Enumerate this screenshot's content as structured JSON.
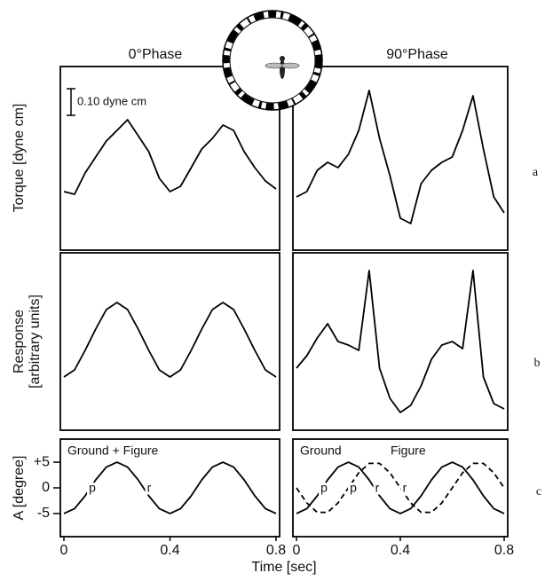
{
  "chart_data": [
    {
      "type": "line",
      "title": "0°Phase",
      "ylabel": "Torque [dyne cm]",
      "scale_bar": {
        "value": 0.1,
        "label": "0.10 dyne cm"
      },
      "x": [
        0,
        0.04,
        0.08,
        0.12,
        0.16,
        0.2,
        0.24,
        0.28,
        0.32,
        0.36,
        0.4,
        0.44,
        0.48,
        0.52,
        0.56,
        0.6,
        0.64,
        0.68,
        0.72,
        0.76,
        0.8
      ],
      "xlim": [
        0,
        0.8
      ],
      "ylim": [
        0,
        0.69
      ],
      "series": [
        {
          "color": "#000000",
          "values": [
            0.22,
            0.21,
            0.29,
            0.35,
            0.41,
            0.45,
            0.49,
            0.43,
            0.37,
            0.27,
            0.22,
            0.24,
            0.31,
            0.38,
            0.42,
            0.47,
            0.45,
            0.37,
            0.31,
            0.26,
            0.23
          ]
        }
      ]
    },
    {
      "type": "line",
      "title": "90°Phase",
      "row_label": "a",
      "x": [
        0,
        0.04,
        0.08,
        0.12,
        0.16,
        0.2,
        0.24,
        0.28,
        0.32,
        0.36,
        0.4,
        0.44,
        0.48,
        0.52,
        0.56,
        0.6,
        0.64,
        0.68,
        0.72,
        0.76,
        0.8
      ],
      "xlim": [
        0,
        0.8
      ],
      "ylim": [
        0,
        0.69
      ],
      "series": [
        {
          "color": "#000000",
          "values": [
            0.2,
            0.22,
            0.3,
            0.33,
            0.31,
            0.36,
            0.45,
            0.6,
            0.42,
            0.28,
            0.12,
            0.1,
            0.25,
            0.3,
            0.33,
            0.35,
            0.45,
            0.58,
            0.38,
            0.2,
            0.14
          ]
        }
      ]
    },
    {
      "type": "line",
      "ylabel": [
        "Response",
        "[arbitrary units]"
      ],
      "x": [
        0,
        0.04,
        0.08,
        0.12,
        0.16,
        0.2,
        0.24,
        0.28,
        0.32,
        0.36,
        0.4,
        0.44,
        0.48,
        0.52,
        0.56,
        0.6,
        0.64,
        0.68,
        0.72,
        0.76,
        0.8
      ],
      "xlim": [
        0,
        0.8
      ],
      "ylim": [
        0,
        1
      ],
      "series": [
        {
          "color": "#000000",
          "values": [
            0.3,
            0.34,
            0.45,
            0.57,
            0.68,
            0.72,
            0.68,
            0.57,
            0.45,
            0.34,
            0.3,
            0.34,
            0.45,
            0.57,
            0.68,
            0.72,
            0.68,
            0.57,
            0.45,
            0.34,
            0.3
          ]
        }
      ]
    },
    {
      "type": "line",
      "row_label": "b",
      "x": [
        0,
        0.04,
        0.08,
        0.12,
        0.16,
        0.2,
        0.24,
        0.28,
        0.32,
        0.36,
        0.4,
        0.44,
        0.48,
        0.52,
        0.56,
        0.6,
        0.64,
        0.68,
        0.72,
        0.76,
        0.8
      ],
      "xlim": [
        0,
        0.8
      ],
      "ylim": [
        0,
        1
      ],
      "series": [
        {
          "color": "#000000",
          "values": [
            0.35,
            0.42,
            0.52,
            0.6,
            0.5,
            0.48,
            0.45,
            0.9,
            0.35,
            0.18,
            0.1,
            0.14,
            0.25,
            0.4,
            0.48,
            0.5,
            0.46,
            0.9,
            0.3,
            0.15,
            0.12
          ]
        }
      ]
    },
    {
      "type": "line",
      "ylabel": "A [degree]",
      "xlabel": "Time [sec]",
      "annotations": [
        "p",
        "r"
      ],
      "x": [
        0,
        0.04,
        0.08,
        0.12,
        0.16,
        0.2,
        0.24,
        0.28,
        0.32,
        0.36,
        0.4,
        0.44,
        0.48,
        0.52,
        0.56,
        0.6,
        0.64,
        0.68,
        0.72,
        0.76,
        0.8
      ],
      "xlim": [
        0,
        0.8
      ],
      "ylim": [
        -9.5,
        9.5
      ],
      "yticks": [
        {
          "value": 5,
          "label": "+5"
        },
        0,
        -5
      ],
      "xticks": [
        0,
        0.4,
        0.8
      ],
      "series": [
        {
          "name": "Ground + Figure",
          "color": "#000000",
          "values": [
            -5,
            -4.05,
            -1.55,
            1.55,
            4.05,
            5,
            4.05,
            1.55,
            -1.55,
            -4.05,
            -5,
            -4.05,
            -1.55,
            1.55,
            4.05,
            5,
            4.05,
            1.55,
            -1.55,
            -4.05,
            -5
          ]
        }
      ]
    },
    {
      "type": "line",
      "row_label": "c",
      "annotations": [
        "p",
        "p",
        "r",
        "r"
      ],
      "x": [
        0,
        0.04,
        0.08,
        0.12,
        0.16,
        0.2,
        0.24,
        0.28,
        0.32,
        0.36,
        0.4,
        0.44,
        0.48,
        0.52,
        0.56,
        0.6,
        0.64,
        0.68,
        0.72,
        0.76,
        0.8
      ],
      "xlim": [
        0,
        0.8
      ],
      "ylim": [
        -9.5,
        9.5
      ],
      "xticks": [
        0,
        0.4,
        0.8
      ],
      "series": [
        {
          "name": "Ground",
          "color": "#000000",
          "values": [
            -5,
            -4.05,
            -1.55,
            1.55,
            4.05,
            5,
            4.05,
            1.55,
            -1.55,
            -4.05,
            -5,
            -4.05,
            -1.55,
            1.55,
            4.05,
            5,
            4.05,
            1.55,
            -1.55,
            -4.05,
            -5
          ]
        },
        {
          "name": "Figure",
          "color": "#000000",
          "dashed": true,
          "values": [
            0,
            -2.94,
            -4.76,
            -4.76,
            -2.94,
            0,
            2.94,
            4.76,
            4.76,
            2.94,
            0,
            -2.94,
            -4.76,
            -4.76,
            -2.94,
            0,
            2.94,
            4.76,
            4.76,
            2.94,
            0
          ]
        }
      ]
    }
  ]
}
